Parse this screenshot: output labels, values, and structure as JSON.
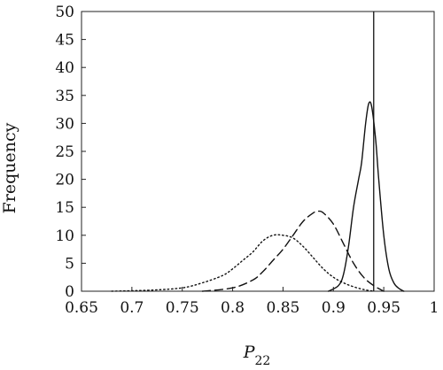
{
  "chart_data": {
    "type": "line",
    "title": "",
    "xlabel": "P",
    "xlabel_subscript": "22",
    "ylabel": "Frequency",
    "xlim": [
      0.65,
      1.0
    ],
    "ylim": [
      0,
      50
    ],
    "x_ticks": [
      0.65,
      0.7,
      0.75,
      0.8,
      0.85,
      0.9,
      0.95,
      1.0
    ],
    "x_tick_labels": [
      "0.65",
      "0.7",
      "0.75",
      "0.8",
      "0.85",
      "0.9",
      "0.95",
      "1"
    ],
    "y_ticks": [
      0,
      5,
      10,
      15,
      20,
      25,
      30,
      35,
      40,
      45,
      50
    ],
    "y_tick_labels": [
      "0",
      "5",
      "10",
      "15",
      "20",
      "25",
      "30",
      "35",
      "40",
      "45",
      "50"
    ],
    "grid": false,
    "legend": "none",
    "reference_line_x": 0.94,
    "series": [
      {
        "style": "dotted",
        "x": [
          0.68,
          0.72,
          0.75,
          0.77,
          0.79,
          0.8,
          0.81,
          0.82,
          0.83,
          0.84,
          0.85,
          0.86,
          0.87,
          0.88,
          0.89,
          0.9,
          0.91,
          0.92,
          0.93,
          0.94
        ],
        "y": [
          0,
          0.2,
          0.6,
          1.5,
          2.8,
          4.0,
          5.5,
          7.0,
          9.0,
          10.0,
          10.0,
          9.5,
          8.0,
          6.0,
          4.0,
          2.5,
          1.5,
          0.8,
          0.3,
          0
        ]
      },
      {
        "style": "dashed",
        "x": [
          0.77,
          0.8,
          0.82,
          0.83,
          0.84,
          0.85,
          0.86,
          0.87,
          0.88,
          0.885,
          0.89,
          0.9,
          0.91,
          0.92,
          0.93,
          0.94,
          0.95
        ],
        "y": [
          0,
          0.6,
          2.0,
          3.5,
          5.5,
          7.5,
          10.0,
          12.5,
          14.0,
          14.3,
          14.0,
          12.0,
          8.5,
          5.0,
          2.5,
          1.0,
          0
        ]
      },
      {
        "style": "solid",
        "x": [
          0.895,
          0.905,
          0.91,
          0.915,
          0.92,
          0.925,
          0.928,
          0.932,
          0.935,
          0.938,
          0.942,
          0.945,
          0.95,
          0.955,
          0.96,
          0.965,
          0.97
        ],
        "y": [
          0,
          1.0,
          3.0,
          8.0,
          15.0,
          20.0,
          23.0,
          30.0,
          33.5,
          33.0,
          27.0,
          20.0,
          10.0,
          4.0,
          1.5,
          0.5,
          0
        ]
      }
    ]
  }
}
